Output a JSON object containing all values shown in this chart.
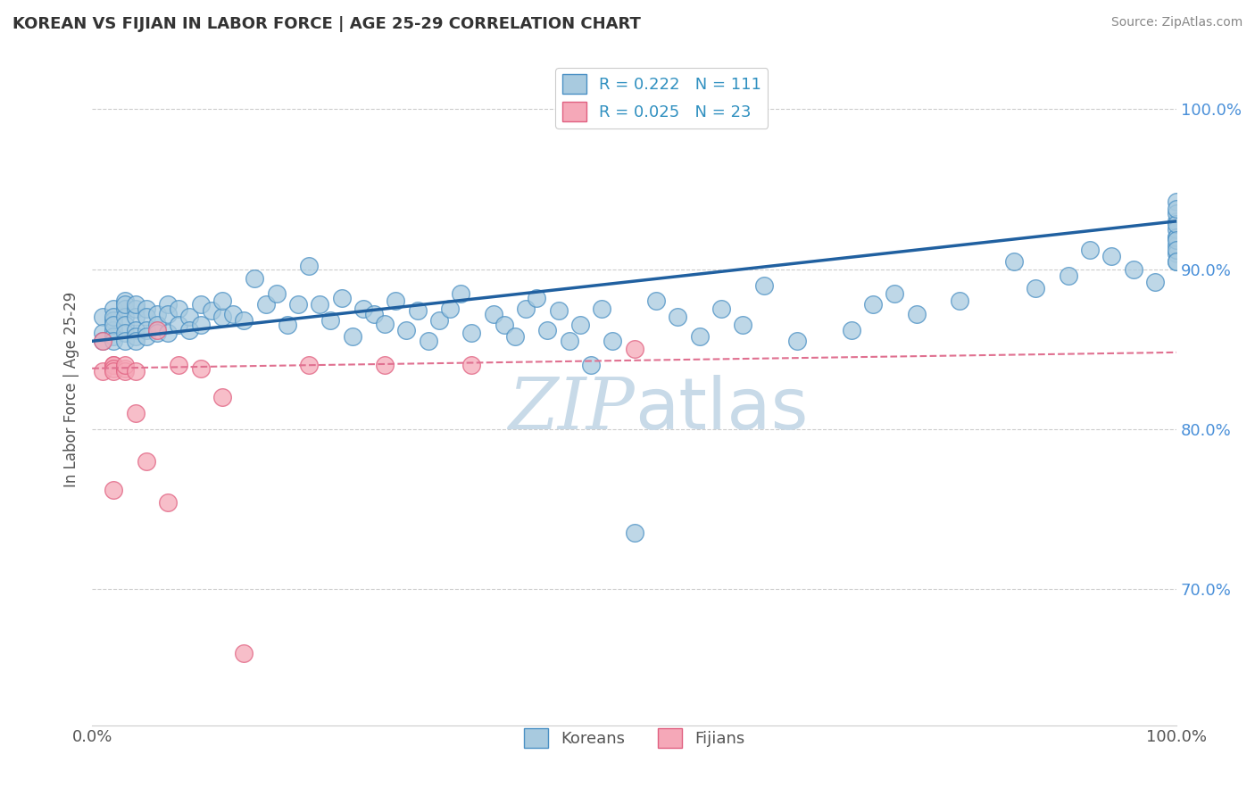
{
  "title": "KOREAN VS FIJIAN IN LABOR FORCE | AGE 25-29 CORRELATION CHART",
  "source_text": "Source: ZipAtlas.com",
  "ylabel": "In Labor Force | Age 25-29",
  "xlim": [
    0.0,
    1.0
  ],
  "ylim": [
    0.615,
    1.035
  ],
  "yticks": [
    0.7,
    0.8,
    0.9,
    1.0
  ],
  "ytick_labels": [
    "70.0%",
    "80.0%",
    "90.0%",
    "100.0%"
  ],
  "xtick_labels": [
    "0.0%",
    "100.0%"
  ],
  "korean_R": 0.222,
  "korean_N": 111,
  "fijian_R": 0.025,
  "fijian_N": 23,
  "korean_color": "#a8cadf",
  "fijian_color": "#f5a8b8",
  "korean_edge_color": "#4a90c4",
  "fijian_edge_color": "#e06080",
  "korean_line_color": "#2060a0",
  "fijian_line_color": "#e07090",
  "background_color": "#ffffff",
  "grid_color": "#cccccc",
  "title_color": "#333333",
  "axis_color": "#4a90d9",
  "label_color": "#555555",
  "watermark_color": "#c8dae8",
  "legend_R_color": "#3090c0",
  "korean_trend_x": [
    0.0,
    1.0
  ],
  "korean_trend_y": [
    0.855,
    0.93
  ],
  "fijian_trend_x": [
    0.0,
    1.0
  ],
  "fijian_trend_y": [
    0.838,
    0.848
  ],
  "korean_x": [
    0.01,
    0.01,
    0.01,
    0.02,
    0.02,
    0.02,
    0.02,
    0.02,
    0.02,
    0.02,
    0.03,
    0.03,
    0.03,
    0.03,
    0.03,
    0.03,
    0.03,
    0.04,
    0.04,
    0.04,
    0.04,
    0.04,
    0.04,
    0.05,
    0.05,
    0.05,
    0.05,
    0.06,
    0.06,
    0.06,
    0.07,
    0.07,
    0.07,
    0.08,
    0.08,
    0.09,
    0.09,
    0.1,
    0.1,
    0.11,
    0.12,
    0.12,
    0.13,
    0.14,
    0.15,
    0.16,
    0.17,
    0.18,
    0.19,
    0.2,
    0.21,
    0.22,
    0.23,
    0.24,
    0.25,
    0.26,
    0.27,
    0.28,
    0.29,
    0.3,
    0.31,
    0.32,
    0.33,
    0.34,
    0.35,
    0.37,
    0.38,
    0.39,
    0.4,
    0.41,
    0.42,
    0.43,
    0.44,
    0.45,
    0.46,
    0.47,
    0.48,
    0.5,
    0.52,
    0.54,
    0.56,
    0.58,
    0.6,
    0.62,
    0.65,
    0.7,
    0.72,
    0.74,
    0.76,
    0.8,
    0.85,
    0.87,
    0.9,
    0.92,
    0.94,
    0.96,
    0.98,
    1.0,
    1.0,
    1.0,
    1.0,
    1.0,
    1.0,
    1.0,
    1.0,
    1.0,
    1.0,
    1.0,
    1.0,
    1.0,
    1.0
  ],
  "korean_y": [
    0.87,
    0.86,
    0.855,
    0.875,
    0.868,
    0.862,
    0.858,
    0.87,
    0.865,
    0.855,
    0.88,
    0.875,
    0.87,
    0.865,
    0.86,
    0.878,
    0.855,
    0.875,
    0.87,
    0.862,
    0.858,
    0.878,
    0.855,
    0.875,
    0.87,
    0.862,
    0.858,
    0.872,
    0.865,
    0.86,
    0.878,
    0.872,
    0.86,
    0.875,
    0.865,
    0.87,
    0.862,
    0.878,
    0.865,
    0.874,
    0.87,
    0.88,
    0.872,
    0.868,
    0.894,
    0.878,
    0.885,
    0.865,
    0.878,
    0.902,
    0.878,
    0.868,
    0.882,
    0.858,
    0.875,
    0.872,
    0.866,
    0.88,
    0.862,
    0.874,
    0.855,
    0.868,
    0.875,
    0.885,
    0.86,
    0.872,
    0.865,
    0.858,
    0.875,
    0.882,
    0.862,
    0.874,
    0.855,
    0.865,
    0.84,
    0.875,
    0.855,
    0.735,
    0.88,
    0.87,
    0.858,
    0.875,
    0.865,
    0.89,
    0.855,
    0.862,
    0.878,
    0.885,
    0.872,
    0.88,
    0.905,
    0.888,
    0.896,
    0.912,
    0.908,
    0.9,
    0.892,
    0.942,
    0.93,
    0.92,
    0.915,
    0.925,
    0.91,
    0.905,
    0.935,
    0.92,
    0.928,
    0.918,
    0.912,
    0.938,
    0.905
  ],
  "fijian_x": [
    0.01,
    0.01,
    0.02,
    0.02,
    0.02,
    0.02,
    0.02,
    0.03,
    0.03,
    0.03,
    0.04,
    0.04,
    0.05,
    0.06,
    0.07,
    0.08,
    0.1,
    0.12,
    0.14,
    0.2,
    0.27,
    0.35,
    0.5
  ],
  "fijian_y": [
    0.855,
    0.836,
    0.84,
    0.762,
    0.84,
    0.838,
    0.836,
    0.838,
    0.836,
    0.84,
    0.836,
    0.81,
    0.78,
    0.862,
    0.754,
    0.84,
    0.838,
    0.82,
    0.66,
    0.84,
    0.84,
    0.84,
    0.85
  ]
}
